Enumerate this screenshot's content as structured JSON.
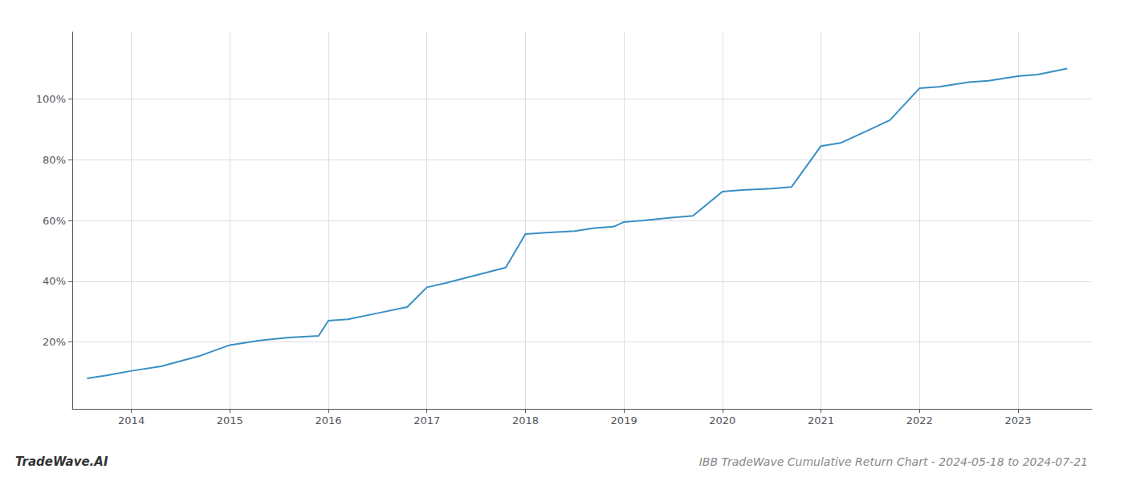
{
  "chart_data": {
    "type": "line",
    "title": "IBB TradeWave Cumulative Return Chart - 2024-05-18 to 2024-07-21",
    "annotations": [
      "TradeWave.AI"
    ],
    "x": [
      2013.55,
      2013.75,
      2014.0,
      2014.3,
      2014.7,
      2015.0,
      2015.3,
      2015.6,
      2015.9,
      2016.0,
      2016.2,
      2016.5,
      2016.8,
      2017.0,
      2017.2,
      2017.5,
      2017.8,
      2018.0,
      2018.2,
      2018.5,
      2018.7,
      2018.9,
      2019.0,
      2019.2,
      2019.5,
      2019.7,
      2020.0,
      2020.2,
      2020.5,
      2020.7,
      2021.0,
      2021.2,
      2021.5,
      2021.7,
      2022.0,
      2022.2,
      2022.5,
      2022.7,
      2023.0,
      2023.2,
      2023.5
    ],
    "values": [
      0.08,
      0.09,
      0.105,
      0.12,
      0.155,
      0.19,
      0.205,
      0.215,
      0.22,
      0.27,
      0.275,
      0.295,
      0.315,
      0.38,
      0.395,
      0.42,
      0.445,
      0.555,
      0.56,
      0.565,
      0.575,
      0.58,
      0.595,
      0.6,
      0.61,
      0.615,
      0.695,
      0.7,
      0.705,
      0.71,
      0.845,
      0.855,
      0.9,
      0.93,
      1.035,
      1.04,
      1.055,
      1.06,
      1.075,
      1.08,
      1.1
    ],
    "color": "#3a8fc4",
    "xlim": [
      2013.4,
      2023.75
    ],
    "xticks": [
      2014,
      2015,
      2016,
      2017,
      2018,
      2019,
      2020,
      2021,
      2022,
      2023
    ],
    "ylim": [
      -0.02,
      1.22
    ],
    "yticks": [
      {
        "value": 0.2,
        "label": "20%"
      },
      {
        "value": 0.4,
        "label": "40%"
      },
      {
        "value": 0.6,
        "label": "60%"
      },
      {
        "value": 0.8,
        "label": "80%"
      },
      {
        "value": 1.0,
        "label": "100%"
      }
    ],
    "grid": true
  }
}
